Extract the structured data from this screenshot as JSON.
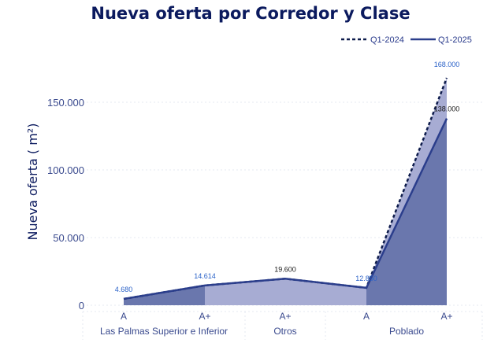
{
  "chart_data": {
    "type": "area",
    "title": "Nueva oferta por Corredor y Clase",
    "ylabel": "Nueva oferta ( m²)",
    "xlabel": "",
    "ylim": [
      0,
      168000
    ],
    "yticks": [
      0,
      50000,
      100000,
      150000
    ],
    "ytick_labels": [
      "0",
      "50.000",
      "100.000",
      "150.000"
    ],
    "legend_position": "top-right",
    "grid": true,
    "categories": [
      "A",
      "A+",
      "A+",
      "A",
      "A+"
    ],
    "groups": [
      {
        "label": "Las Palmas Superior e Inferior",
        "categories": [
          "A",
          "A+"
        ]
      },
      {
        "label": "Otros",
        "categories": [
          "A+"
        ]
      },
      {
        "label": "Poblado",
        "categories": [
          "A",
          "A+"
        ]
      }
    ],
    "series": [
      {
        "name": "Q1-2024",
        "style": "dashed",
        "color": "#0d1b4b",
        "fill": "#a7acd3",
        "values": [
          4680,
          14614,
          19600,
          12850,
          168000
        ],
        "labels": [
          "",
          "",
          "",
          "",
          "168.000"
        ]
      },
      {
        "name": "Q1-2025",
        "style": "solid",
        "color": "#2b3e8c",
        "fill": "#6a77ad",
        "values": [
          4680,
          14614,
          19600,
          12850,
          138000
        ],
        "labels": [
          "4.680",
          "14.614",
          "19.600",
          "12.850",
          "138.000"
        ]
      }
    ]
  }
}
